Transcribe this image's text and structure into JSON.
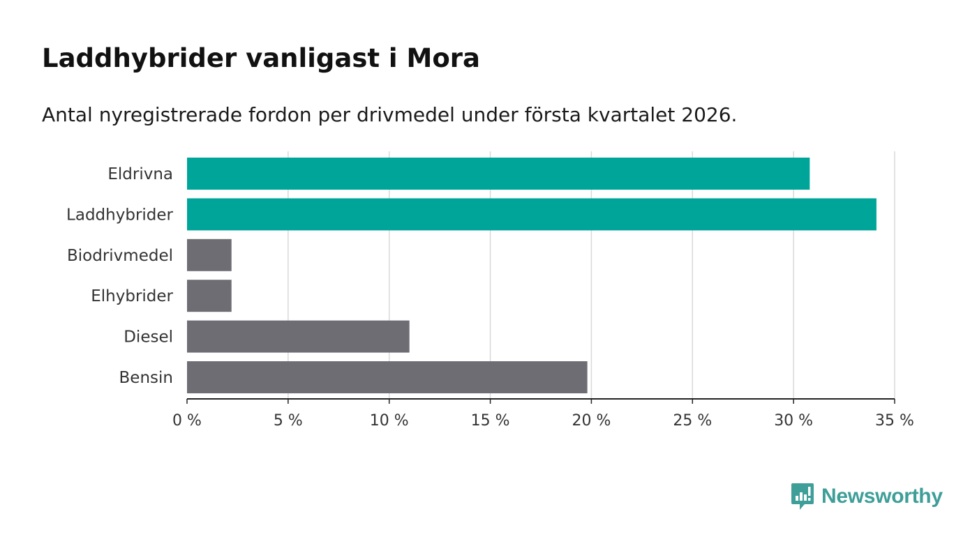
{
  "header": {
    "title": "Laddhybrider vanligast i Mora",
    "subtitle": "Antal nyregistrerade fordon per drivmedel under första kvartalet 2026."
  },
  "chart_data": {
    "type": "bar",
    "orientation": "horizontal",
    "categories": [
      "Eldrivna",
      "Laddhybrider",
      "Biodrivmedel",
      "Elhybrider",
      "Diesel",
      "Bensin"
    ],
    "values": [
      30.8,
      34.1,
      2.2,
      2.2,
      11.0,
      19.8
    ],
    "colors": [
      "#00a59a",
      "#00a59a",
      "#6e6d74",
      "#6e6d74",
      "#6e6d74",
      "#6e6d74"
    ],
    "xlim": [
      0,
      35
    ],
    "xticks": [
      0,
      5,
      10,
      15,
      20,
      25,
      30,
      35
    ],
    "xtick_labels": [
      "0 %",
      "5 %",
      "10 %",
      "15 %",
      "20 %",
      "25 %",
      "30 %",
      "35 %"
    ],
    "xlabel": "",
    "ylabel": "",
    "grid": true
  },
  "logo": {
    "text": "Newsworthy",
    "icon": "chart-bubble-icon",
    "color": "#3e9e98"
  }
}
